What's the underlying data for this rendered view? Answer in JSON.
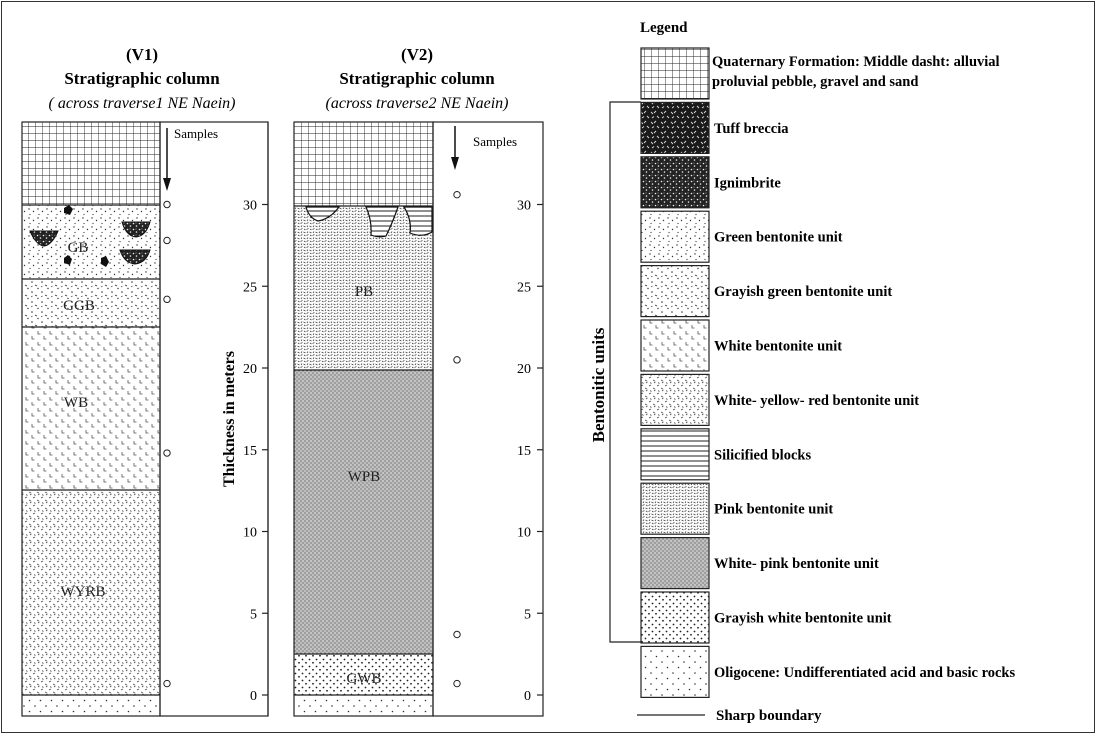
{
  "v1": {
    "heading": "(V1)",
    "title": "Stratigraphic column",
    "subtitle": "( across traverse1 NE Naein)",
    "samples_label": "Samples",
    "unit_labels": {
      "gb": "GB",
      "ggb": "GGB",
      "wb": "WB",
      "wyrb": "WYRB"
    },
    "layers": [
      {
        "unit": "Oligocene",
        "from": -0.5,
        "to": 0.0
      },
      {
        "unit": "WYRB",
        "from": 0.0,
        "to": 12.5
      },
      {
        "unit": "WB",
        "from": 12.5,
        "to": 22.5
      },
      {
        "unit": "GGB",
        "from": 22.5,
        "to": 25.5
      },
      {
        "unit": "GB",
        "from": 25.5,
        "to": 30.0
      },
      {
        "unit": "Quaternary",
        "from": 30.0,
        "to": 35.0
      }
    ],
    "sample_depths_m": [
      30,
      27.8,
      24.2,
      14.8,
      0.7
    ]
  },
  "v2": {
    "heading": "(V2)",
    "title": "Stratigraphic column",
    "subtitle": "(across traverse2 NE Naein)",
    "samples_label": "Samples",
    "unit_labels": {
      "pb": "PB",
      "wpb": "WPB",
      "gwb": "GWB"
    },
    "layers": [
      {
        "unit": "Oligocene",
        "from": -0.5,
        "to": 0.0
      },
      {
        "unit": "GWB",
        "from": 0.0,
        "to": 2.5
      },
      {
        "unit": "WPB",
        "from": 2.5,
        "to": 20.0
      },
      {
        "unit": "PB",
        "from": 20.0,
        "to": 30.0
      },
      {
        "unit": "Silicified blocks",
        "from": 28.0,
        "to": 30.0
      },
      {
        "unit": "Quaternary",
        "from": 30.0,
        "to": 35.0
      }
    ],
    "sample_depths_m": [
      30.6,
      20.5,
      3.7,
      0.7
    ]
  },
  "axis": {
    "label": "Thickness in meters",
    "ticks": [
      {
        "value": 0,
        "label": "0"
      },
      {
        "value": 5,
        "label": "5"
      },
      {
        "value": 10,
        "label": "10"
      },
      {
        "value": 15,
        "label": "15"
      },
      {
        "value": 20,
        "label": "20"
      },
      {
        "value": 25,
        "label": "25"
      },
      {
        "value": 30,
        "label": "30"
      }
    ]
  },
  "legend": {
    "title": "Legend",
    "bracket_label": "Bentonitic units",
    "items": [
      {
        "key": "quaternary",
        "line1": "Quaternary Formation: Middle dasht: alluvial",
        "line2": "proluvial pebble, gravel and sand"
      },
      {
        "key": "tuff",
        "line1": "Tuff breccia"
      },
      {
        "key": "ignimbrite",
        "line1": "Ignimbrite"
      },
      {
        "key": "green",
        "line1": "Green bentonite unit"
      },
      {
        "key": "grayish_green",
        "line1": "Grayish green bentonite unit"
      },
      {
        "key": "white",
        "line1": "White bentonite unit"
      },
      {
        "key": "wyr",
        "line1": "White- yellow- red bentonite unit"
      },
      {
        "key": "silicified",
        "line1": "Silicified blocks"
      },
      {
        "key": "pink",
        "line1": "Pink bentonite unit"
      },
      {
        "key": "white_pink",
        "line1": "White- pink bentonite unit"
      },
      {
        "key": "grayish_white",
        "line1": "Grayish white bentonite unit"
      },
      {
        "key": "oligocene",
        "line1": "Oligocene: Undifferentiated acid and basic rocks"
      }
    ],
    "sharp_boundary_label": "Sharp boundary"
  }
}
